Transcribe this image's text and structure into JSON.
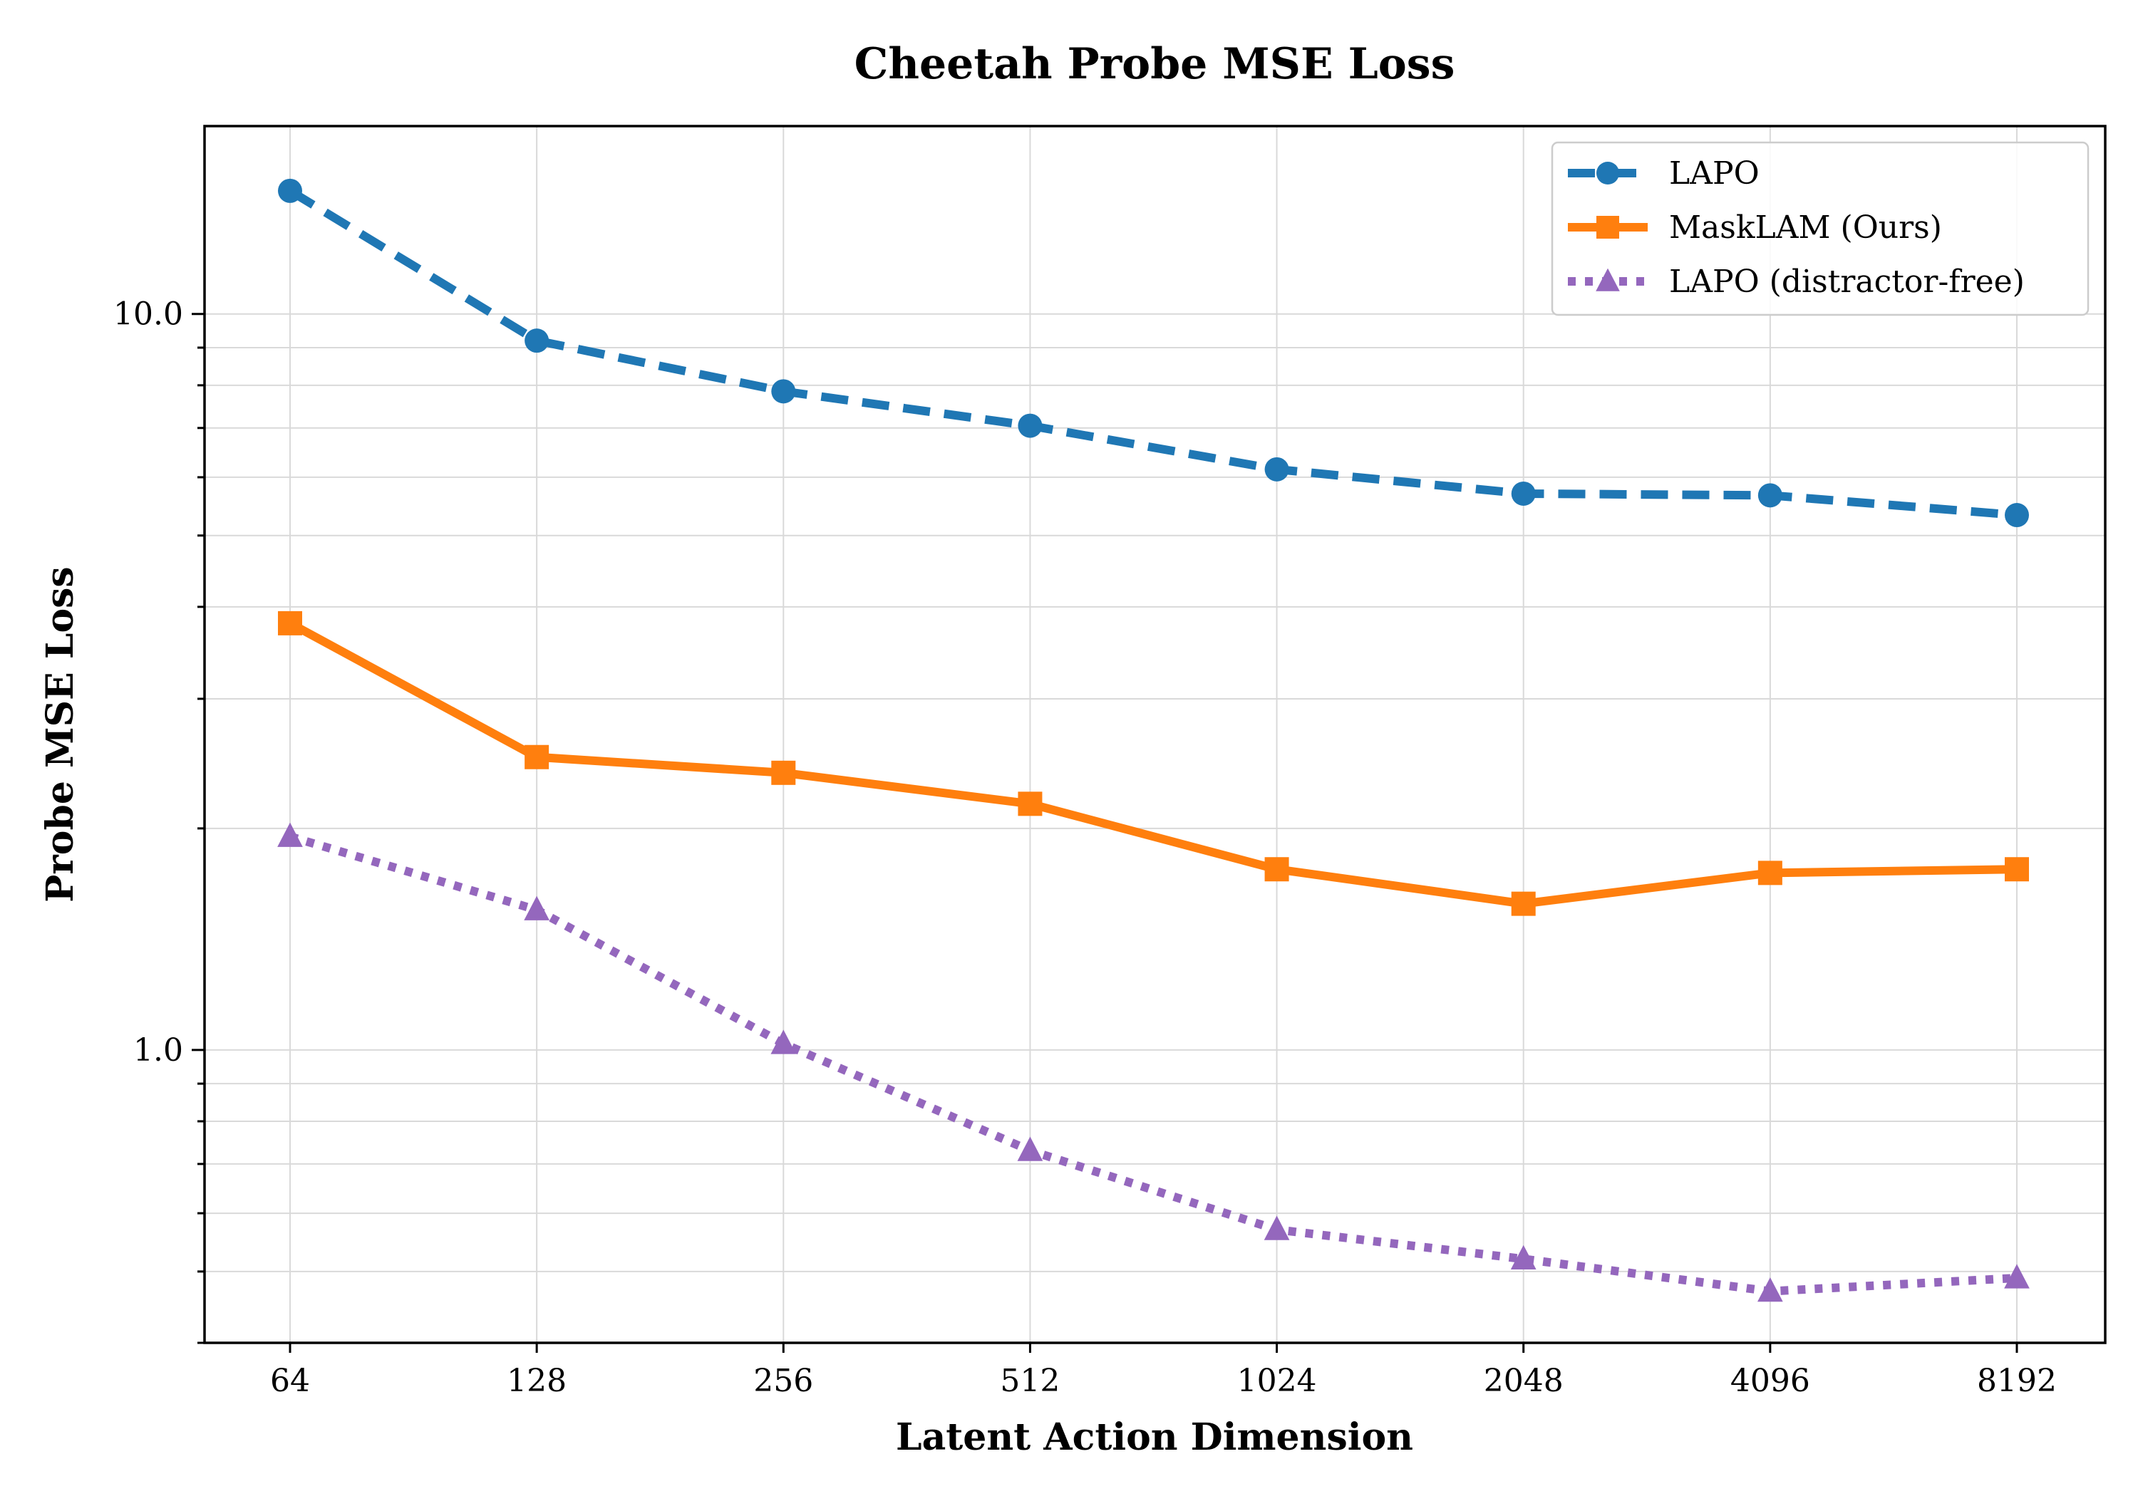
{
  "chart_data": {
    "type": "line",
    "title": "Cheetah Probe MSE Loss",
    "xlabel": "Latent Action Dimension",
    "ylabel": "Probe MSE Loss",
    "yscale": "log",
    "ylim": [
      0.4,
      18
    ],
    "categories": [
      "64",
      "128",
      "256",
      "512",
      "1024",
      "2048",
      "4096",
      "8192"
    ],
    "y_ticks": [
      {
        "value": 1.0,
        "label": "1.0"
      },
      {
        "value": 10.0,
        "label": "10.0"
      }
    ],
    "grid": true,
    "legend_position": "top-right",
    "series": [
      {
        "name": "LAPO",
        "color": "#1f77b4",
        "line_style": "dashed",
        "marker": "circle",
        "values": [
          14.7,
          9.2,
          7.85,
          7.05,
          6.15,
          5.7,
          5.67,
          5.33
        ]
      },
      {
        "name": "MaskLAM (Ours)",
        "color": "#ff7f0e",
        "line_style": "solid",
        "marker": "square",
        "values": [
          3.8,
          2.5,
          2.38,
          2.16,
          1.76,
          1.58,
          1.74,
          1.76
        ]
      },
      {
        "name": "LAPO (distractor-free)",
        "color": "#9467bd",
        "line_style": "dotted",
        "marker": "triangle",
        "values": [
          1.95,
          1.55,
          1.02,
          0.73,
          0.57,
          0.52,
          0.47,
          0.49
        ]
      }
    ]
  }
}
